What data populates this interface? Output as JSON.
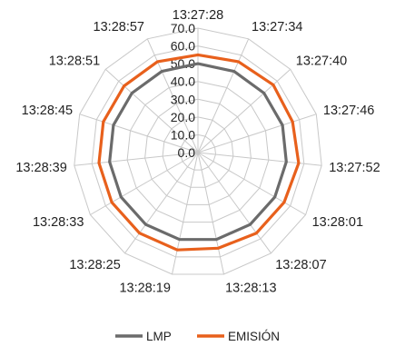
{
  "chart_data": {
    "type": "radar",
    "categories": [
      "13:27:28",
      "13:27:34",
      "13:27:40",
      "13:27:46",
      "13:27:52",
      "13:28:01",
      "13:28:07",
      "13:28:13",
      "13:28:19",
      "13:28:25",
      "13:28:33",
      "13:28:39",
      "13:28:45",
      "13:28:51",
      "13:28:57"
    ],
    "rlim": [
      0,
      70
    ],
    "ticks": [
      "0.0",
      "10.0",
      "20.0",
      "30.0",
      "40.0",
      "50.0",
      "60.0",
      "70.0"
    ],
    "tick_values": [
      0,
      10,
      20,
      30,
      40,
      50,
      60,
      70
    ],
    "grid": true,
    "legend_position": "bottom",
    "series": [
      {
        "name": "LMP",
        "color": "#6b6b6b",
        "values": [
          50,
          50,
          50,
          50,
          50,
          50,
          50,
          50,
          50,
          50,
          50,
          50,
          50,
          50,
          50
        ]
      },
      {
        "name": "EMISIÓN",
        "color": "#e8601c",
        "values": [
          55,
          56,
          57,
          56,
          57,
          56,
          56,
          55,
          56,
          56,
          56,
          56,
          56,
          56,
          56
        ]
      }
    ]
  }
}
